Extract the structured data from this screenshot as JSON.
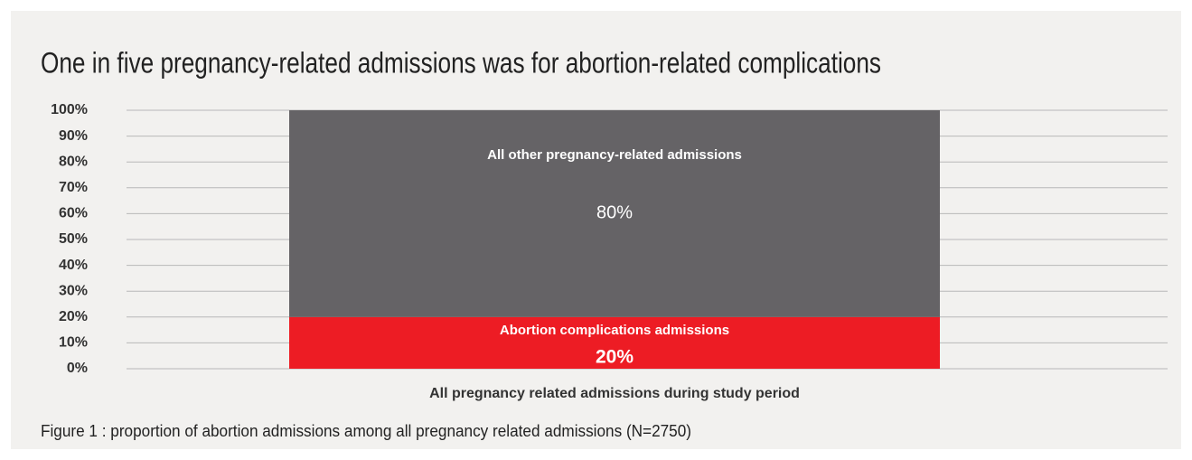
{
  "chart_data": {
    "type": "bar",
    "stacked": true,
    "title": "One in five pregnancy-related admissions was for abortion-related complications",
    "caption": "Figure 1 : proportion of abortion admissions among all pregnancy related admissions (N=2750)",
    "categories": [
      "All pregnancy related admissions during study period"
    ],
    "series": [
      {
        "name": "Abortion complications admissions",
        "color": "#ed1c24",
        "values": [
          20
        ],
        "value_labels": [
          "20%"
        ]
      },
      {
        "name": "All other pregnancy-related admissions",
        "color": "#656366",
        "values": [
          80
        ],
        "value_labels": [
          "80%"
        ]
      }
    ],
    "ylim": [
      0,
      100
    ],
    "yticks": [
      {
        "value": 0,
        "label": "0%"
      },
      {
        "value": 10,
        "label": "10%"
      },
      {
        "value": 20,
        "label": "20%"
      },
      {
        "value": 30,
        "label": "30%"
      },
      {
        "value": 40,
        "label": "40%"
      },
      {
        "value": 50,
        "label": "50%"
      },
      {
        "value": 60,
        "label": "60%"
      },
      {
        "value": 70,
        "label": "70%"
      },
      {
        "value": 80,
        "label": "80%"
      },
      {
        "value": 90,
        "label": "90%"
      },
      {
        "value": 100,
        "label": "100%"
      }
    ],
    "grid": true
  }
}
